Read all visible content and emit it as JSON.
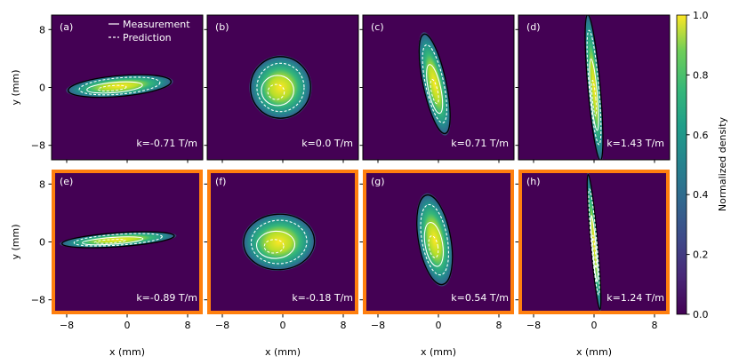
{
  "chart_data": {
    "type": "heatmap",
    "panels": [
      {
        "label": "(a)",
        "k_text": "k=-0.71 T/m",
        "k_value": -0.71,
        "highlighted": false,
        "row": 0,
        "col": 0,
        "beam": {
          "cx": -1.0,
          "cy": 0.2,
          "rx": 6.7,
          "ry": 1.35,
          "angle_deg": -5
        }
      },
      {
        "label": "(b)",
        "k_text": "k=0.0 T/m",
        "k_value": 0.0,
        "highlighted": false,
        "row": 0,
        "col": 1,
        "beam": {
          "cx": -0.3,
          "cy": 0.0,
          "rx": 3.9,
          "ry": 4.0,
          "angle_deg": 0
        }
      },
      {
        "label": "(c)",
        "k_text": "k=0.71 T/m",
        "k_value": 0.71,
        "highlighted": false,
        "row": 0,
        "col": 2,
        "beam": {
          "cx": -0.5,
          "cy": 0.5,
          "rx": 1.5,
          "ry": 6.6,
          "angle_deg": -12
        }
      },
      {
        "label": "(d)",
        "k_text": "k=1.43 T/m",
        "k_value": 1.43,
        "highlighted": false,
        "row": 0,
        "col": 3,
        "beam": {
          "cx": 0.0,
          "cy": 0.0,
          "rx": 0.8,
          "ry": 9.5,
          "angle_deg": -5
        }
      },
      {
        "label": "(e)",
        "k_text": "k=-0.89 T/m",
        "k_value": -0.89,
        "highlighted": true,
        "row": 1,
        "col": 0,
        "beam": {
          "cx": -1.2,
          "cy": 0.3,
          "rx": 7.3,
          "ry": 0.9,
          "angle_deg": -4
        }
      },
      {
        "label": "(f)",
        "k_text": "k=-0.18 T/m",
        "k_value": -0.18,
        "highlighted": true,
        "row": 1,
        "col": 1,
        "beam": {
          "cx": -0.5,
          "cy": 0.0,
          "rx": 4.6,
          "ry": 3.6,
          "angle_deg": -3
        }
      },
      {
        "label": "(g)",
        "k_text": "k=0.54 T/m",
        "k_value": 0.54,
        "highlighted": true,
        "row": 1,
        "col": 2,
        "beam": {
          "cx": -0.5,
          "cy": 0.3,
          "rx": 2.1,
          "ry": 5.9,
          "angle_deg": -10
        }
      },
      {
        "label": "(h)",
        "k_text": "k=1.24 T/m",
        "k_value": 1.24,
        "highlighted": true,
        "row": 1,
        "col": 3,
        "beam": {
          "cx": 0.0,
          "cy": 0.0,
          "rx": 0.45,
          "ry": 8.8,
          "angle_deg": -5
        }
      }
    ],
    "xlabel": "x (mm)",
    "ylabel": "y (mm)",
    "xlim": [
      -10,
      10
    ],
    "ylim": [
      -10,
      10
    ],
    "xticks": [
      -8,
      0,
      8
    ],
    "yticks": [
      -8,
      0,
      8
    ],
    "legend": {
      "entries": [
        {
          "label": "Measurement",
          "style": "solid"
        },
        {
          "label": "Prediction",
          "style": "dashed"
        }
      ],
      "location": "top-center of panel (a)"
    },
    "colorbar": {
      "label": "Normalized density",
      "min": 0.0,
      "max": 1.0,
      "ticks": [
        0.0,
        0.2,
        0.4,
        0.6,
        0.8,
        1.0
      ],
      "tick_labels": [
        "0.0",
        "0.2",
        "0.4",
        "0.6",
        "0.8",
        "1.0"
      ],
      "colormap": "viridis"
    }
  },
  "colors": {
    "background": "#440154",
    "highlight_frame": "#ff7f0e",
    "measurement_contour": "#000000",
    "prediction_contour": "#ffffff"
  }
}
